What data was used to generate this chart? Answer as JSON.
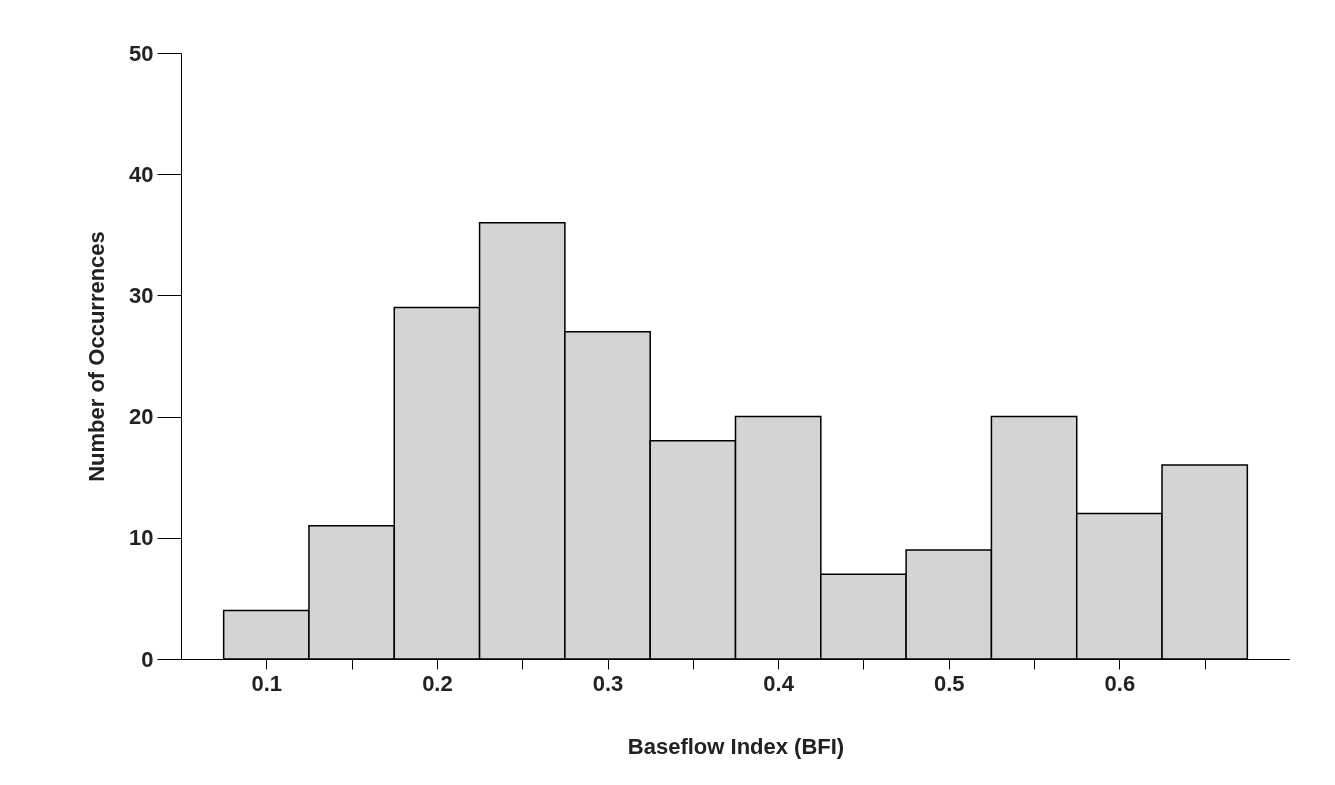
{
  "chart_data": {
    "type": "histogram",
    "xlabel": "Baseflow Index (BFI)",
    "ylabel": "Number of Occurrences",
    "bins": [
      0.075,
      0.125,
      0.175,
      0.225,
      0.275,
      0.325,
      0.375,
      0.425,
      0.475,
      0.525,
      0.575,
      0.625,
      0.675
    ],
    "values": [
      4,
      11,
      29,
      36,
      27,
      18,
      20,
      7,
      9,
      20,
      12,
      16
    ],
    "color": "#d3d4d6",
    "xlim": [
      0.05,
      0.7
    ],
    "xticks": [
      0.1,
      {
        "value": 0.15,
        "label": null
      },
      0.2,
      {
        "value": 0.25,
        "label": null
      },
      0.3,
      {
        "value": 0.35,
        "label": null
      },
      0.4,
      {
        "value": 0.45,
        "label": null
      },
      0.5,
      {
        "value": 0.55,
        "label": null
      },
      0.6,
      {
        "value": 0.65,
        "label": null
      }
    ],
    "ylim": [
      0,
      50
    ],
    "yticks": [
      0,
      10,
      20,
      30,
      40,
      50
    ],
    "grid": false
  }
}
